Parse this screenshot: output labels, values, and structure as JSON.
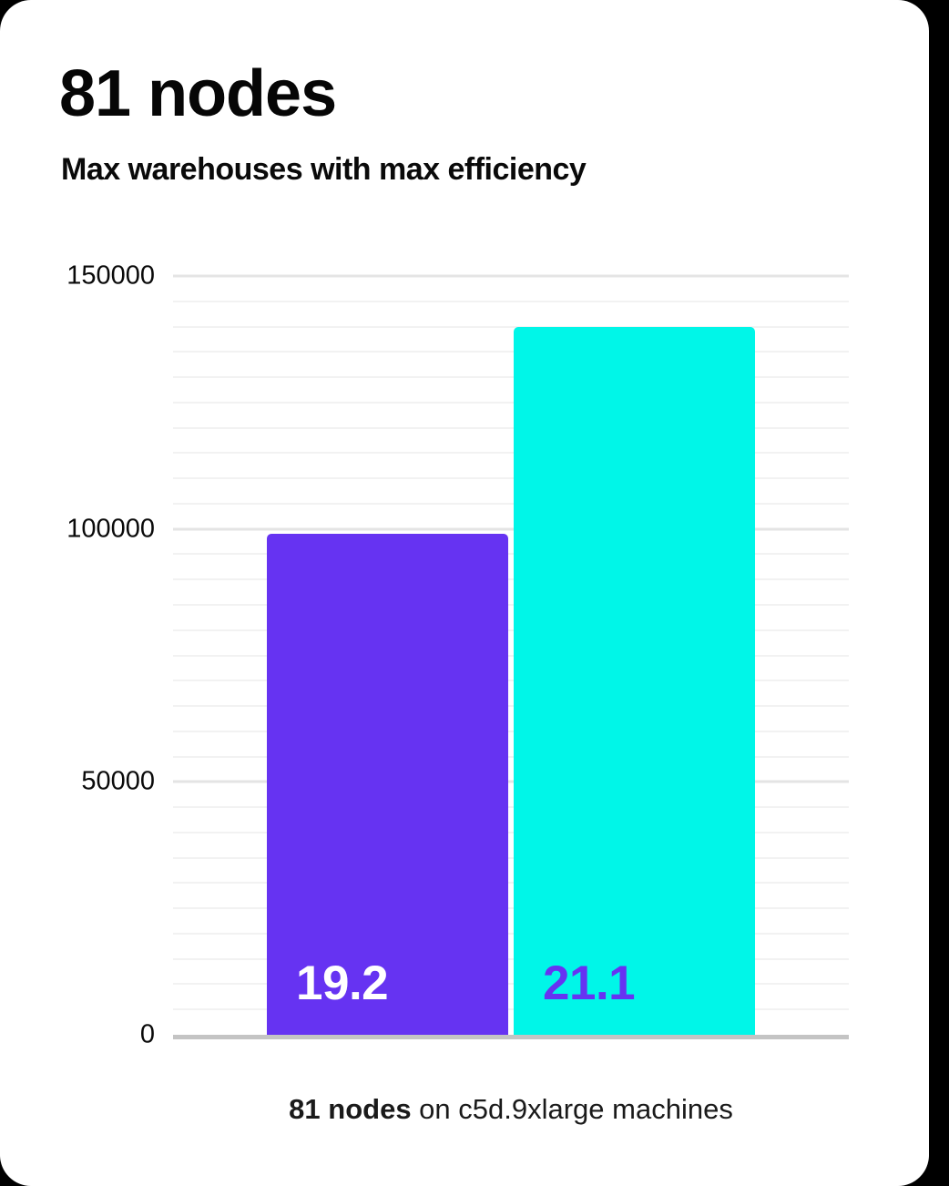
{
  "header": {
    "title": "81 nodes",
    "subtitle": "Max warehouses with max efficiency"
  },
  "chart_data": {
    "type": "bar",
    "title": "81 nodes",
    "subtitle": "Max warehouses with max efficiency",
    "categories": [
      "19.2",
      "21.1"
    ],
    "values": [
      99000,
      140000
    ],
    "bar_value_labels": [
      "19.2",
      "21.1"
    ],
    "bar_colors": [
      "#6633f2",
      "#00f6e8"
    ],
    "bar_label_colors": [
      "#ffffff",
      "#6633f2"
    ],
    "ylim": [
      0,
      150000
    ],
    "y_ticks": [
      0,
      50000,
      100000,
      150000
    ],
    "y_tick_labels": [
      "0",
      "50000",
      "100000",
      "150000"
    ],
    "minor_grid_step": 5000,
    "grid": true,
    "legend": false,
    "xlabel": "",
    "ylabel": "",
    "caption": "81 nodes on c5d.9xlarge machines"
  },
  "caption": {
    "bold": "81 nodes",
    "rest": " on c5d.9xlarge machines"
  }
}
